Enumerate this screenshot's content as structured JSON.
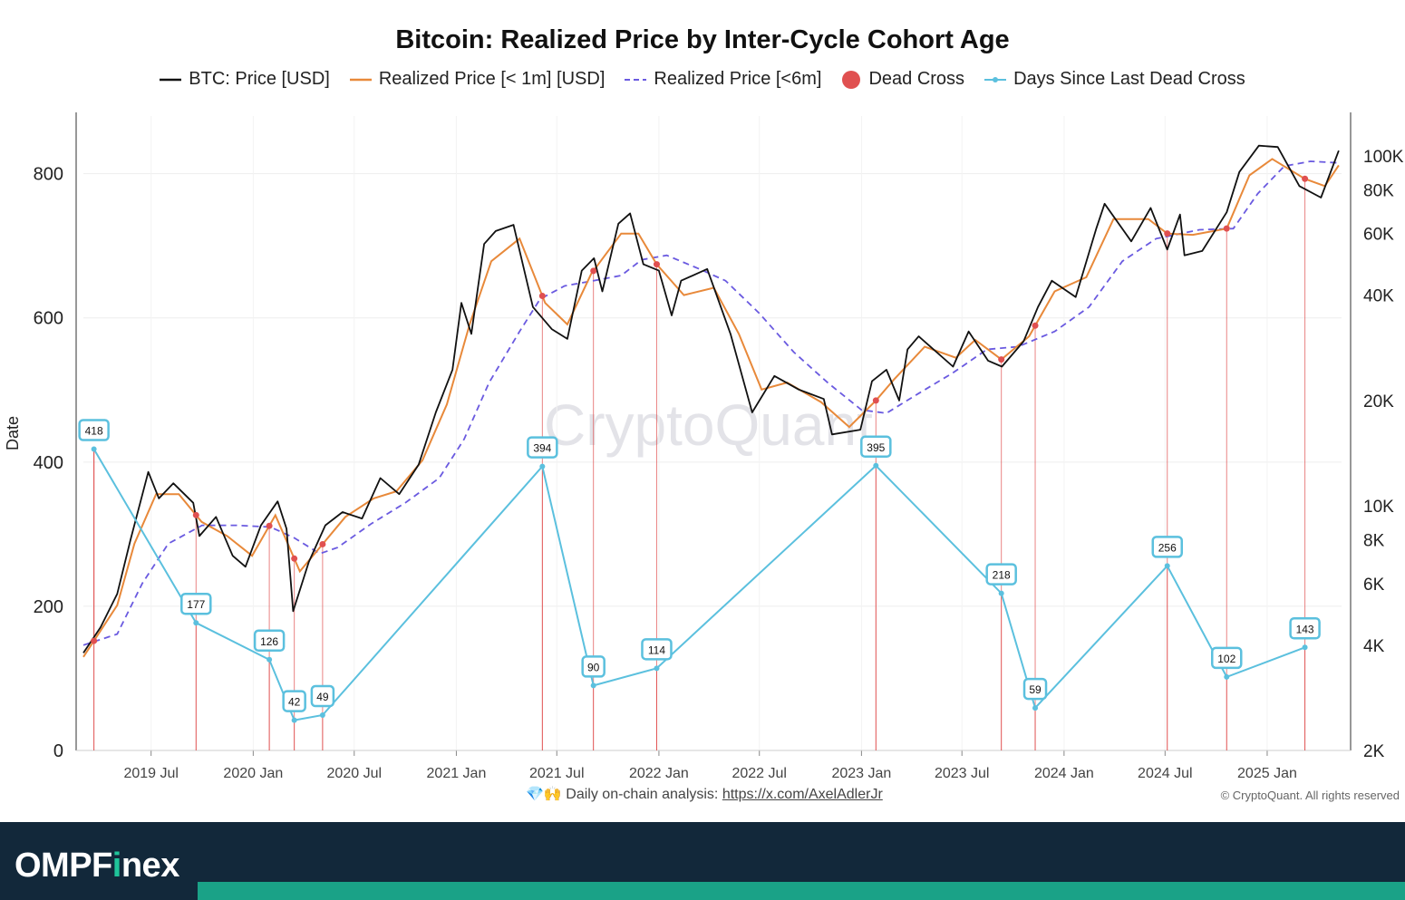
{
  "chart_data": {
    "type": "line",
    "title": "Bitcoin: Realized Price by Inter-Cycle Cohort Age",
    "legend": [
      {
        "name": "BTC: Price [USD]",
        "color": "#111111",
        "style": "solid"
      },
      {
        "name": "Realized Price [< 1m] [USD]",
        "color": "#e8893a",
        "style": "solid"
      },
      {
        "name": "Realized Price [<6m]",
        "color": "#6a5ae0",
        "style": "dashed"
      },
      {
        "name": "Dead Cross",
        "color": "#e05050",
        "style": "dot"
      },
      {
        "name": "Days Since Last Dead Cross",
        "color": "#5bc0de",
        "style": "line-dot"
      }
    ],
    "legend_position": "top-center",
    "left_axis": {
      "label": "Date",
      "range": [
        0,
        880
      ],
      "ticks": [
        "0",
        "200",
        "400",
        "600",
        "800"
      ]
    },
    "right_axis": {
      "scale": "log",
      "range": [
        2000,
        130000
      ],
      "ticks": [
        "2K",
        "4K",
        "6K",
        "8K",
        "10K",
        "20K",
        "40K",
        "60K",
        "80K",
        "100K"
      ]
    },
    "x_axis": {
      "range": [
        "2019-03-01",
        "2025-05-15"
      ],
      "ticks": [
        "2019 Jul",
        "2020 Jan",
        "2020 Jul",
        "2021 Jan",
        "2021 Jul",
        "2022 Jan",
        "2022 Jul",
        "2023 Jan",
        "2023 Jul",
        "2024 Jan",
        "2024 Jul",
        "2025 Jan"
      ]
    },
    "grid": true,
    "days_since_dead_cross": [
      {
        "date": "2019-03-20",
        "value": 418,
        "label": "418"
      },
      {
        "date": "2019-09-20",
        "value": 177,
        "label": "177"
      },
      {
        "date": "2020-01-30",
        "value": 126,
        "label": "126"
      },
      {
        "date": "2020-03-15",
        "value": 42,
        "label": "42"
      },
      {
        "date": "2020-05-05",
        "value": 49,
        "label": "49"
      },
      {
        "date": "2021-06-05",
        "value": 394,
        "label": "394"
      },
      {
        "date": "2021-09-05",
        "value": 90,
        "label": "90"
      },
      {
        "date": "2021-12-28",
        "value": 114,
        "label": "114"
      },
      {
        "date": "2023-01-27",
        "value": 395,
        "label": "395"
      },
      {
        "date": "2023-09-10",
        "value": 218,
        "label": "218"
      },
      {
        "date": "2023-11-10",
        "value": 59,
        "label": "59"
      },
      {
        "date": "2024-07-05",
        "value": 256,
        "label": "256"
      },
      {
        "date": "2024-10-20",
        "value": 102,
        "label": "102"
      },
      {
        "date": "2025-03-10",
        "value": 143,
        "label": "143"
      }
    ],
    "btc_price": [
      [
        "2019-03-01",
        3800
      ],
      [
        "2019-04-01",
        4500
      ],
      [
        "2019-05-01",
        5600
      ],
      [
        "2019-05-25",
        8000
      ],
      [
        "2019-06-26",
        12500
      ],
      [
        "2019-07-15",
        10500
      ],
      [
        "2019-08-10",
        11600
      ],
      [
        "2019-09-15",
        10200
      ],
      [
        "2019-09-26",
        8200
      ],
      [
        "2019-10-26",
        9300
      ],
      [
        "2019-11-25",
        7200
      ],
      [
        "2019-12-18",
        6700
      ],
      [
        "2020-01-15",
        8800
      ],
      [
        "2020-02-14",
        10300
      ],
      [
        "2020-03-01",
        8600
      ],
      [
        "2020-03-13",
        5000
      ],
      [
        "2020-04-10",
        6900
      ],
      [
        "2020-05-10",
        8800
      ],
      [
        "2020-06-10",
        9600
      ],
      [
        "2020-07-15",
        9200
      ],
      [
        "2020-08-17",
        12000
      ],
      [
        "2020-09-20",
        10800
      ],
      [
        "2020-10-25",
        13100
      ],
      [
        "2020-11-25",
        18500
      ],
      [
        "2020-12-25",
        24500
      ],
      [
        "2021-01-10",
        38000
      ],
      [
        "2021-01-28",
        31000
      ],
      [
        "2021-02-20",
        56000
      ],
      [
        "2021-03-13",
        61000
      ],
      [
        "2021-04-14",
        63500
      ],
      [
        "2021-05-19",
        37000
      ],
      [
        "2021-06-22",
        32000
      ],
      [
        "2021-07-20",
        30000
      ],
      [
        "2021-08-15",
        47000
      ],
      [
        "2021-09-06",
        51000
      ],
      [
        "2021-09-21",
        41000
      ],
      [
        "2021-10-20",
        64000
      ],
      [
        "2021-11-10",
        68500
      ],
      [
        "2021-12-04",
        49000
      ],
      [
        "2022-01-01",
        47000
      ],
      [
        "2022-01-24",
        35000
      ],
      [
        "2022-02-10",
        44000
      ],
      [
        "2022-03-29",
        47500
      ],
      [
        "2022-05-10",
        31000
      ],
      [
        "2022-06-18",
        18500
      ],
      [
        "2022-07-28",
        23500
      ],
      [
        "2022-09-10",
        21500
      ],
      [
        "2022-10-25",
        20200
      ],
      [
        "2022-11-09",
        16000
      ],
      [
        "2022-12-30",
        16500
      ],
      [
        "2023-01-20",
        22700
      ],
      [
        "2023-02-15",
        24500
      ],
      [
        "2023-03-10",
        20000
      ],
      [
        "2023-03-25",
        28000
      ],
      [
        "2023-04-14",
        30500
      ],
      [
        "2023-06-15",
        25000
      ],
      [
        "2023-07-13",
        31500
      ],
      [
        "2023-08-17",
        26000
      ],
      [
        "2023-09-11",
        25000
      ],
      [
        "2023-10-20",
        29500
      ],
      [
        "2023-11-15",
        37000
      ],
      [
        "2023-12-10",
        44000
      ],
      [
        "2024-01-22",
        39500
      ],
      [
        "2024-02-28",
        62000
      ],
      [
        "2024-03-14",
        73000
      ],
      [
        "2024-05-01",
        57000
      ],
      [
        "2024-06-05",
        71000
      ],
      [
        "2024-07-05",
        54000
      ],
      [
        "2024-07-28",
        68000
      ],
      [
        "2024-08-05",
        52000
      ],
      [
        "2024-09-06",
        53500
      ],
      [
        "2024-10-20",
        69000
      ],
      [
        "2024-11-12",
        90000
      ],
      [
        "2024-12-17",
        107000
      ],
      [
        "2025-01-20",
        106000
      ],
      [
        "2025-02-28",
        82000
      ],
      [
        "2025-04-08",
        76000
      ],
      [
        "2025-05-10",
        103500
      ]
    ],
    "realized_1m": [
      [
        "2019-03-01",
        3700
      ],
      [
        "2019-05-01",
        5200
      ],
      [
        "2019-06-01",
        7800
      ],
      [
        "2019-07-10",
        10800
      ],
      [
        "2019-08-20",
        10800
      ],
      [
        "2019-09-30",
        9000
      ],
      [
        "2019-11-15",
        8200
      ],
      [
        "2019-12-30",
        7200
      ],
      [
        "2020-02-10",
        9400
      ],
      [
        "2020-03-25",
        6500
      ],
      [
        "2020-04-30",
        7600
      ],
      [
        "2020-06-15",
        9300
      ],
      [
        "2020-08-05",
        10500
      ],
      [
        "2020-09-15",
        11000
      ],
      [
        "2020-11-01",
        13500
      ],
      [
        "2020-12-15",
        19500
      ],
      [
        "2021-01-25",
        33000
      ],
      [
        "2021-03-05",
        50000
      ],
      [
        "2021-04-25",
        58000
      ],
      [
        "2021-06-10",
        38000
      ],
      [
        "2021-07-20",
        33000
      ],
      [
        "2021-09-01",
        46000
      ],
      [
        "2021-10-25",
        60000
      ],
      [
        "2021-11-25",
        60000
      ],
      [
        "2021-12-28",
        49000
      ],
      [
        "2022-02-15",
        40000
      ],
      [
        "2022-04-10",
        42000
      ],
      [
        "2022-05-25",
        31000
      ],
      [
        "2022-07-05",
        21500
      ],
      [
        "2022-08-20",
        22500
      ],
      [
        "2022-10-20",
        19800
      ],
      [
        "2022-12-10",
        16800
      ],
      [
        "2023-01-27",
        20000
      ],
      [
        "2023-03-01",
        23000
      ],
      [
        "2023-04-25",
        28500
      ],
      [
        "2023-06-20",
        26500
      ],
      [
        "2023-07-25",
        29800
      ],
      [
        "2023-09-10",
        26200
      ],
      [
        "2023-10-30",
        30500
      ],
      [
        "2023-12-15",
        41000
      ],
      [
        "2024-02-10",
        45000
      ],
      [
        "2024-03-30",
        66000
      ],
      [
        "2024-06-01",
        66000
      ],
      [
        "2024-07-05",
        60000
      ],
      [
        "2024-08-20",
        59500
      ],
      [
        "2024-10-20",
        62000
      ],
      [
        "2024-11-30",
        88000
      ],
      [
        "2025-01-10",
        98000
      ],
      [
        "2025-03-10",
        86000
      ],
      [
        "2025-04-15",
        82000
      ],
      [
        "2025-05-10",
        94000
      ]
    ],
    "realized_6m": [
      [
        "2019-03-01",
        4000
      ],
      [
        "2019-05-01",
        4300
      ],
      [
        "2019-06-15",
        6000
      ],
      [
        "2019-08-01",
        7800
      ],
      [
        "2019-10-01",
        8800
      ],
      [
        "2019-12-01",
        8800
      ],
      [
        "2020-02-01",
        8700
      ],
      [
        "2020-03-15",
        8100
      ],
      [
        "2020-04-30",
        7300
      ],
      [
        "2020-06-01",
        7600
      ],
      [
        "2020-08-01",
        8900
      ],
      [
        "2020-10-01",
        10200
      ],
      [
        "2020-12-01",
        12000
      ],
      [
        "2021-01-15",
        15500
      ],
      [
        "2021-03-01",
        22500
      ],
      [
        "2021-04-25",
        31500
      ],
      [
        "2021-06-01",
        39000
      ],
      [
        "2021-07-15",
        42500
      ],
      [
        "2021-09-05",
        44000
      ],
      [
        "2021-10-25",
        45500
      ],
      [
        "2021-12-01",
        50500
      ],
      [
        "2022-01-15",
        52000
      ],
      [
        "2022-03-15",
        47500
      ],
      [
        "2022-05-01",
        44000
      ],
      [
        "2022-07-01",
        35500
      ],
      [
        "2022-09-01",
        27500
      ],
      [
        "2022-11-01",
        22500
      ],
      [
        "2023-01-01",
        18800
      ],
      [
        "2023-02-15",
        18400
      ],
      [
        "2023-04-15",
        21000
      ],
      [
        "2023-06-15",
        24000
      ],
      [
        "2023-08-15",
        28000
      ],
      [
        "2023-10-10",
        28500
      ],
      [
        "2023-12-15",
        31500
      ],
      [
        "2024-02-15",
        37000
      ],
      [
        "2024-04-15",
        50000
      ],
      [
        "2024-06-15",
        58000
      ],
      [
        "2024-09-01",
        61500
      ],
      [
        "2024-11-01",
        62000
      ],
      [
        "2024-12-15",
        78000
      ],
      [
        "2025-02-01",
        93500
      ],
      [
        "2025-03-20",
        96500
      ],
      [
        "2025-05-10",
        95500
      ]
    ]
  },
  "footer": {
    "emoji": "💎🙌",
    "note_prefix": "Daily on-chain analysis: ",
    "link_text": "https://x.com/AxelAdlerJr",
    "copyright": "© CryptoQuant. All rights reserved"
  },
  "watermark": "CryptoQuant",
  "brand": {
    "name_part1": "OMPF",
    "name_i": "i",
    "name_part2": "nex"
  },
  "colors": {
    "price": "#111111",
    "rp1m": "#e8893a",
    "rp6m": "#6a5ae0",
    "dead_cross": "#e05050",
    "days": "#5bc0de",
    "brand_bg": "#12283a",
    "brand_accent": "#1aa287"
  }
}
